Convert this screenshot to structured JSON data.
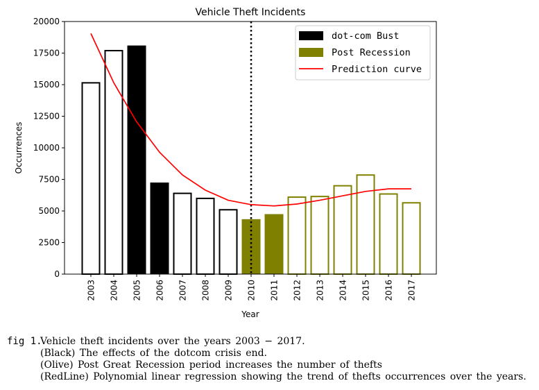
{
  "chart_data": {
    "type": "bar",
    "title": "Vehicle Theft Incidents",
    "xlabel": "Year",
    "ylabel": "Occurrences",
    "ylim": [
      0,
      20000
    ],
    "yticks": [
      0,
      2500,
      5000,
      7500,
      10000,
      12500,
      15000,
      17500,
      20000
    ],
    "yticklabels": [
      "0",
      "2500",
      "5000",
      "7500",
      "10000",
      "12500",
      "15000",
      "17500",
      "20000"
    ],
    "categories": [
      "2003",
      "2004",
      "2005",
      "2006",
      "2007",
      "2008",
      "2009",
      "2010",
      "2011",
      "2012",
      "2013",
      "2014",
      "2015",
      "2016",
      "2017"
    ],
    "values": [
      15200,
      17750,
      18100,
      7250,
      6450,
      6050,
      5150,
      4350,
      4750,
      6150,
      6200,
      7050,
      7900,
      6400,
      5700
    ],
    "bar_styles": [
      "outline-black",
      "outline-black",
      "filled-black",
      "filled-black",
      "outline-black",
      "outline-black",
      "outline-black",
      "filled-olive",
      "filled-olive",
      "outline-olive",
      "outline-olive",
      "outline-olive",
      "outline-olive",
      "outline-olive",
      "outline-olive"
    ],
    "series": [
      {
        "name": "dot-com Bust",
        "color": "#000000",
        "kind": "bar"
      },
      {
        "name": "Post Recession",
        "color": "#808000",
        "kind": "bar"
      },
      {
        "name": "Prediction curve",
        "color": "#ff0000",
        "kind": "line",
        "values": [
          19050,
          15150,
          12050,
          9650,
          7850,
          6650,
          5850,
          5500,
          5400,
          5550,
          5850,
          6200,
          6550,
          6750,
          6750
        ]
      }
    ],
    "vline": {
      "x": "2010",
      "style": "dotted",
      "color": "#000000"
    },
    "legend_position": "top-right",
    "grid": false
  },
  "caption": {
    "label": "fig 1.",
    "lines": [
      "Vehicle theft incidents over the years 2003 − 2017.",
      "(Black) The effects of the dotcom crisis end.",
      "(Olive) Post Great Recession period increases the number of thefts",
      "(RedLine) Polynomial linear regression showing the trend of thefts occurrences over the years."
    ]
  }
}
